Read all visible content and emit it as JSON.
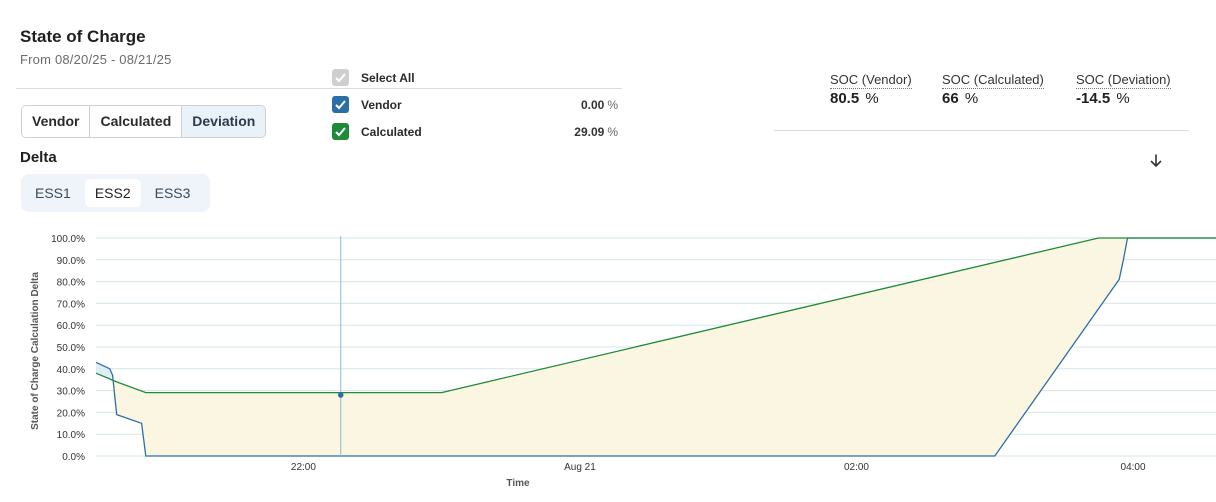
{
  "header": {
    "title": "State of Charge",
    "subtitle": "From 08/20/25 - 08/21/25"
  },
  "mode_tabs": [
    {
      "label": "Vendor",
      "active": false
    },
    {
      "label": "Calculated",
      "active": false
    },
    {
      "label": "Deviation",
      "active": true
    }
  ],
  "legend_list": {
    "select_all": {
      "label": "Select All",
      "checked": true,
      "color": "#cfcfcf"
    },
    "items": [
      {
        "label": "Vendor",
        "value": "0.00",
        "unit": "%",
        "checked": true,
        "color": "#2b6fa6"
      },
      {
        "label": "Calculated",
        "value": "29.09",
        "unit": "%",
        "checked": true,
        "color": "#1f8a3a"
      }
    ]
  },
  "stats": [
    {
      "label": "SOC (Vendor)",
      "value": "80.5",
      "unit": "%"
    },
    {
      "label": "SOC (Calculated)",
      "value": "66",
      "unit": "%"
    },
    {
      "label": "SOC (Deviation)",
      "value": "-14.5",
      "unit": "%"
    }
  ],
  "section_label": "Delta",
  "ess_tabs": [
    {
      "label": "ESS1",
      "active": false
    },
    {
      "label": "ESS2",
      "active": true
    },
    {
      "label": "ESS3",
      "active": false
    }
  ],
  "icons": {
    "download": "download-arrow-icon"
  },
  "chart_data": {
    "type": "line",
    "ylabel": "State of Charge Calculation Delta",
    "xlabel": "Time",
    "ylim": [
      0,
      100
    ],
    "y_ticks": [
      0,
      10,
      20,
      30,
      40,
      50,
      60,
      70,
      80,
      90,
      100
    ],
    "y_tick_labels": [
      "0.0%",
      "10.0%",
      "20.0%",
      "30.0%",
      "40.0%",
      "50.0%",
      "60.0%",
      "70.0%",
      "80.0%",
      "90.0%",
      "100.0%"
    ],
    "xlim": [
      20.5,
      28.6
    ],
    "x_ticks": [
      22,
      24,
      26,
      28
    ],
    "x_tick_labels": [
      "22:00",
      "Aug 21",
      "02:00",
      "04:00"
    ],
    "grid": true,
    "cursor_x": 22.27,
    "cursor_point": {
      "x": 22.27,
      "y": 28
    },
    "series": [
      {
        "name": "Vendor",
        "color": "#2b6fa6",
        "x": [
          20.5,
          20.6,
          20.62,
          20.65,
          20.83,
          20.86,
          27.0,
          27.9,
          27.93,
          27.96,
          28.0,
          28.6
        ],
        "y": [
          43,
          40,
          37,
          19,
          15,
          0,
          0,
          81,
          90,
          100,
          100,
          100
        ]
      },
      {
        "name": "Calculated",
        "color": "#1f8a3a",
        "x": [
          20.5,
          20.65,
          20.86,
          23.0,
          27.75,
          27.95,
          28.6
        ],
        "y": [
          38,
          34,
          29.1,
          29.1,
          100,
          100,
          100
        ]
      }
    ]
  }
}
